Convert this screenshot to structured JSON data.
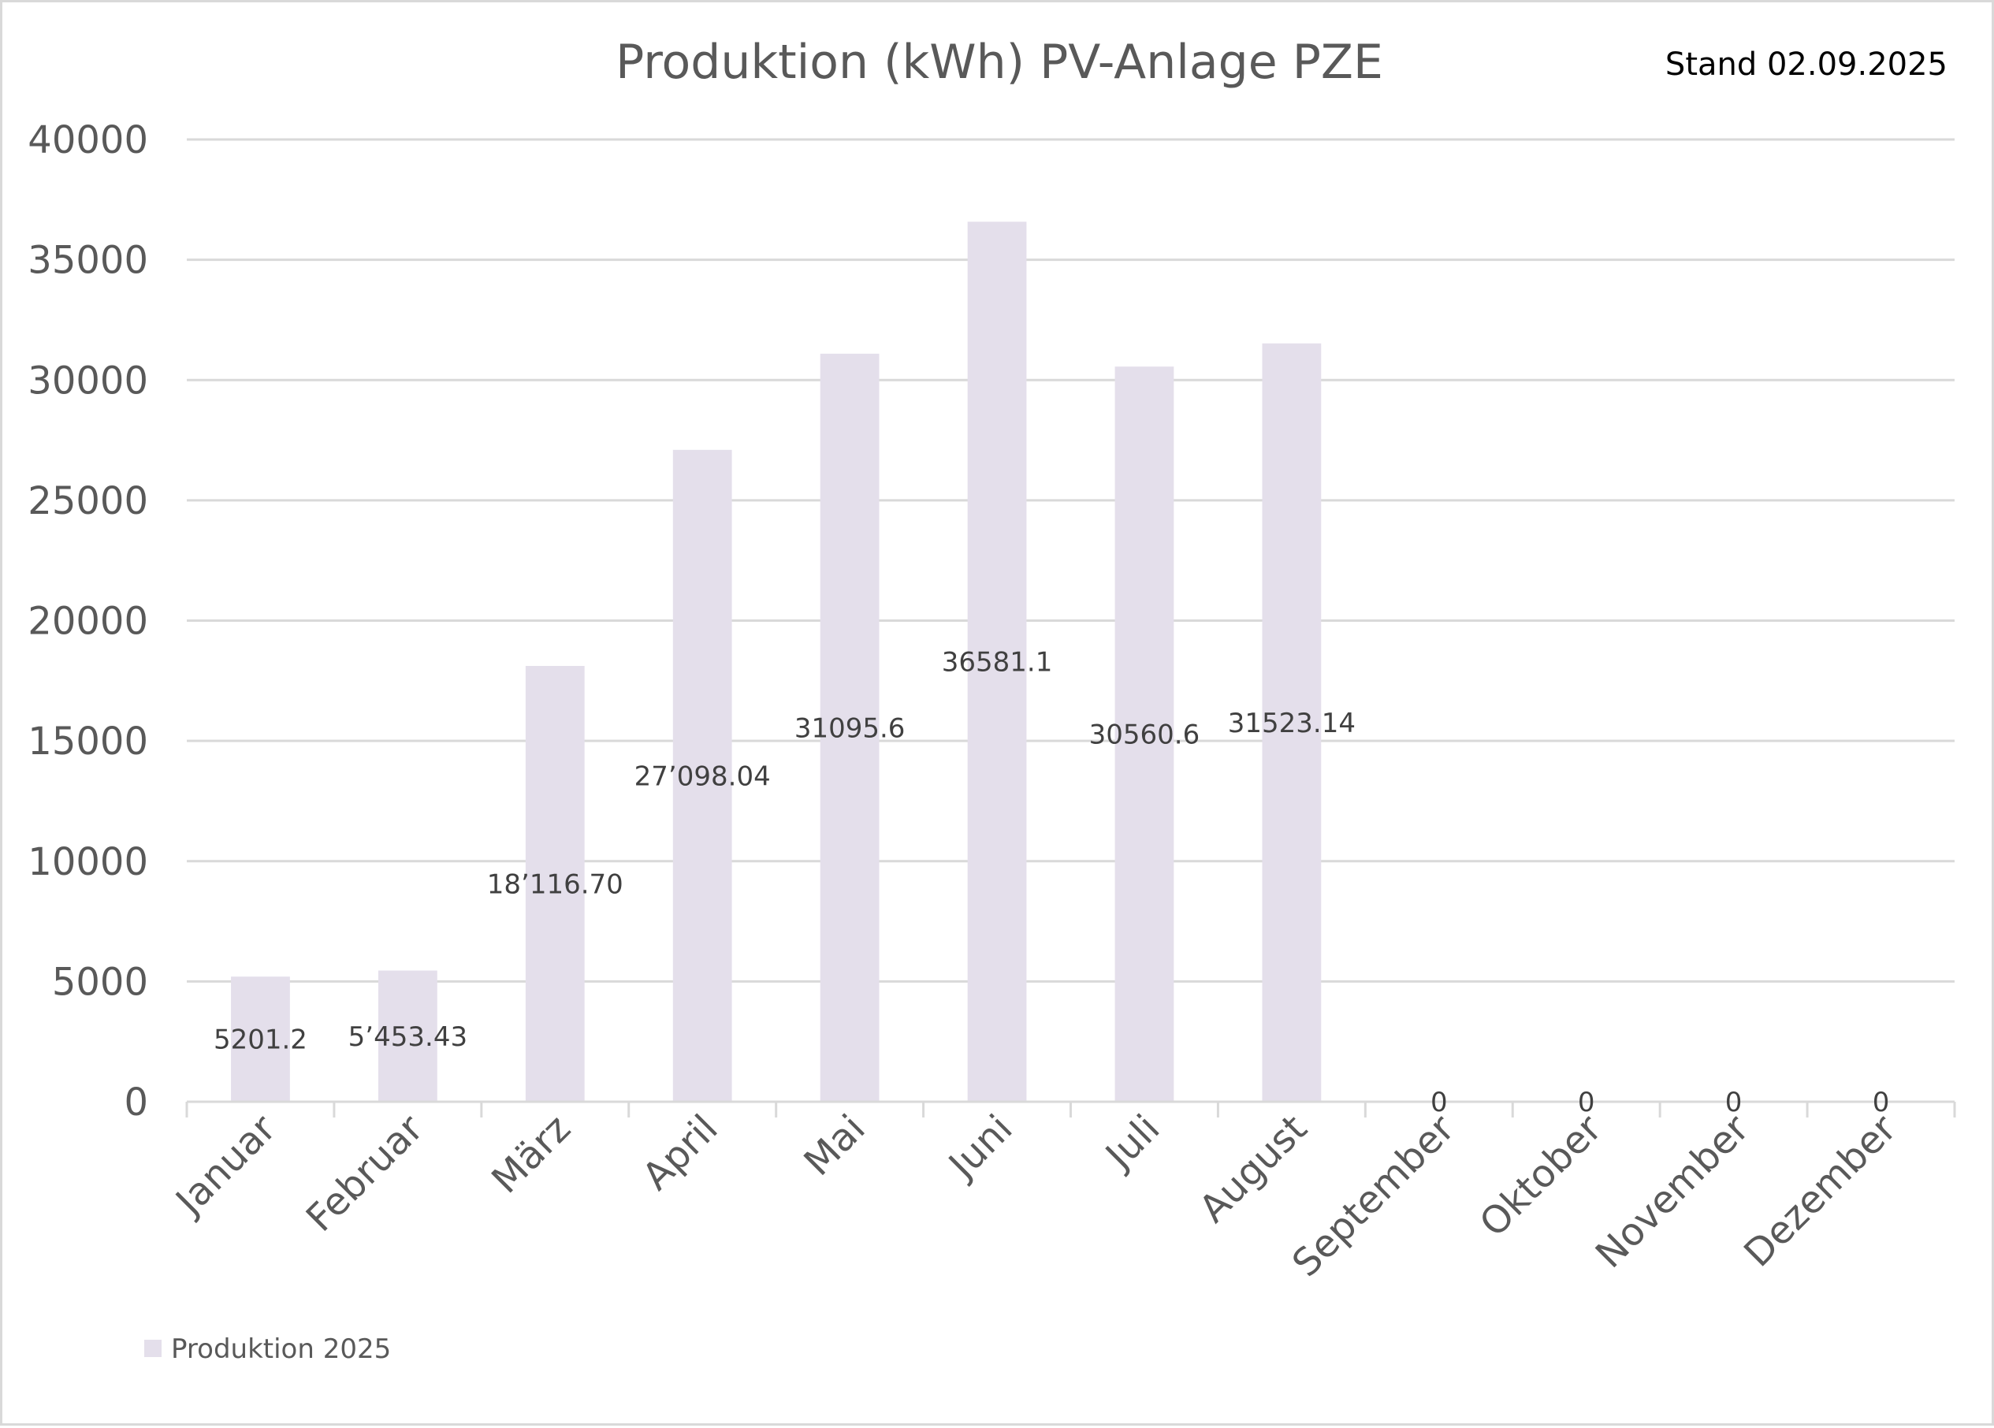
{
  "chart_data": {
    "type": "bar",
    "title": "Produktion (kWh) PV-Anlage PZE",
    "note": "Stand 02.09.2025",
    "xlabel": "",
    "ylabel": "",
    "ylim": [
      0,
      40000
    ],
    "yticks": [
      0,
      5000,
      10000,
      15000,
      20000,
      25000,
      30000,
      35000,
      40000
    ],
    "grid": true,
    "legend_position": "bottom-left",
    "categories": [
      "Januar",
      "Februar",
      "März",
      "April",
      "Mai",
      "Juni",
      "Juli",
      "August",
      "September",
      "Oktober",
      "November",
      "Dezember"
    ],
    "series": [
      {
        "name": "Produktion 2025",
        "color": "#e4dfeb",
        "values": [
          5201.2,
          5453.43,
          18116.7,
          27098.04,
          31095.6,
          36581.1,
          30560.6,
          31523.14,
          0,
          0,
          0,
          0
        ],
        "data_labels": [
          "5201.2",
          "5’453.43",
          "18’116.70",
          "27’098.04",
          "31095.6",
          "36581.1",
          "30560.6",
          "31523.14",
          "0",
          "0",
          "0",
          "0"
        ]
      }
    ]
  }
}
